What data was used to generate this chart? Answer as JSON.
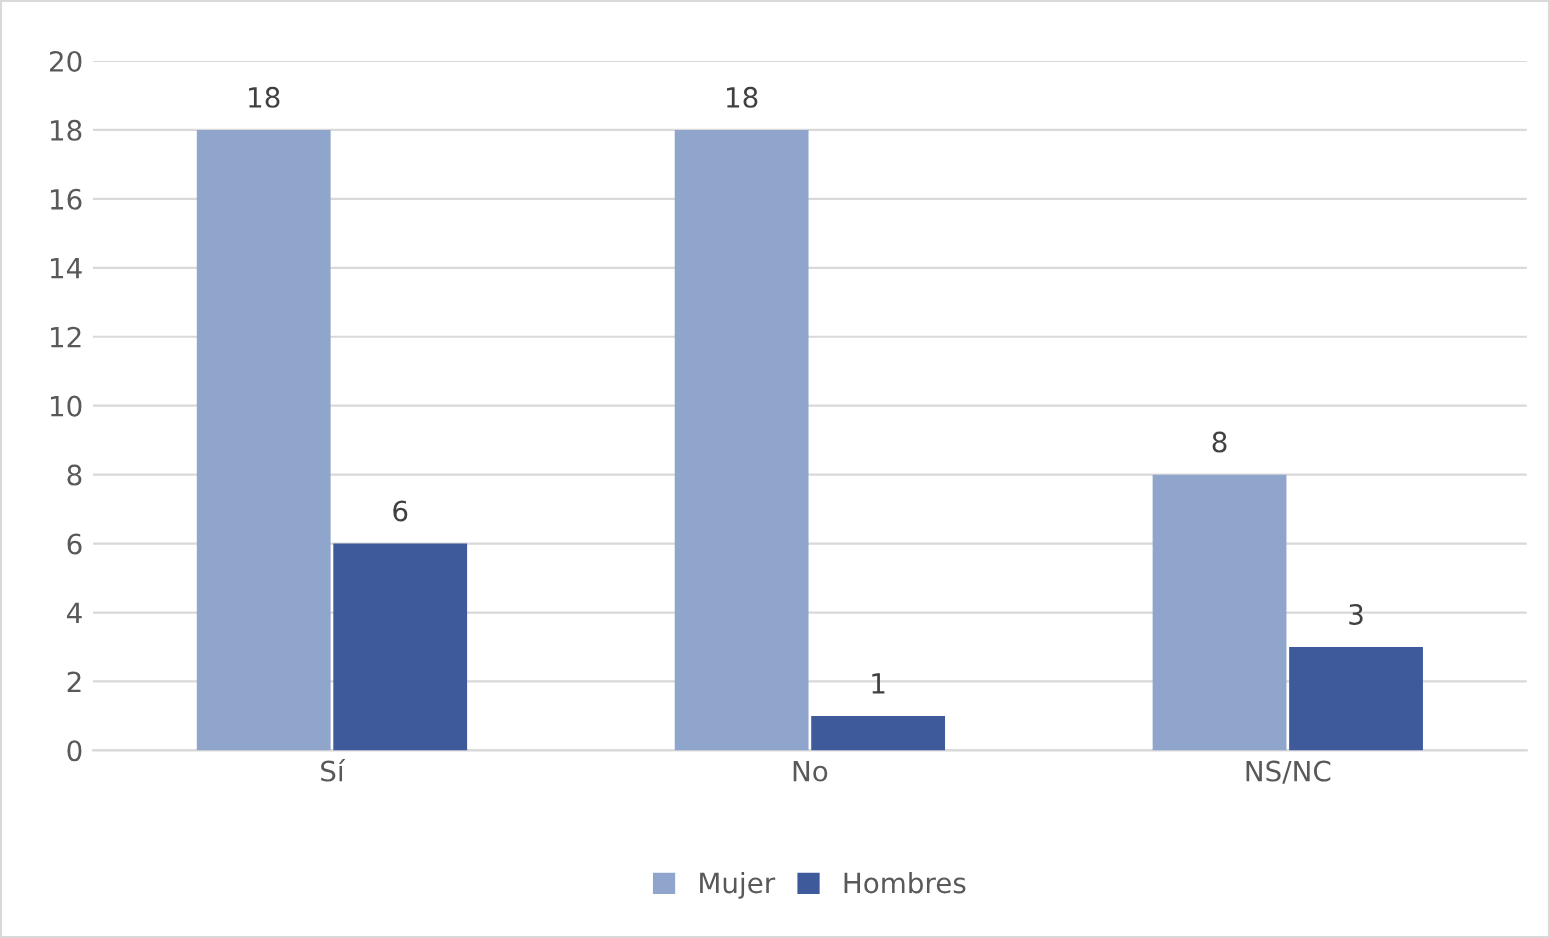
{
  "chart_data": {
    "type": "bar",
    "categories": [
      "Sí",
      "No",
      "NS/NC"
    ],
    "series": [
      {
        "name": "Mujer",
        "color": "#8fa5cc",
        "values": [
          18,
          18,
          8
        ]
      },
      {
        "name": "Hombres",
        "color": "#3f5a9a",
        "values": [
          6,
          1,
          3
        ]
      }
    ],
    "ylim": [
      0,
      20
    ],
    "yticks": [
      0,
      2,
      4,
      6,
      8,
      10,
      12,
      14,
      16,
      18,
      20
    ],
    "grid": "y",
    "legend": "bottom",
    "data_labels": true
  }
}
